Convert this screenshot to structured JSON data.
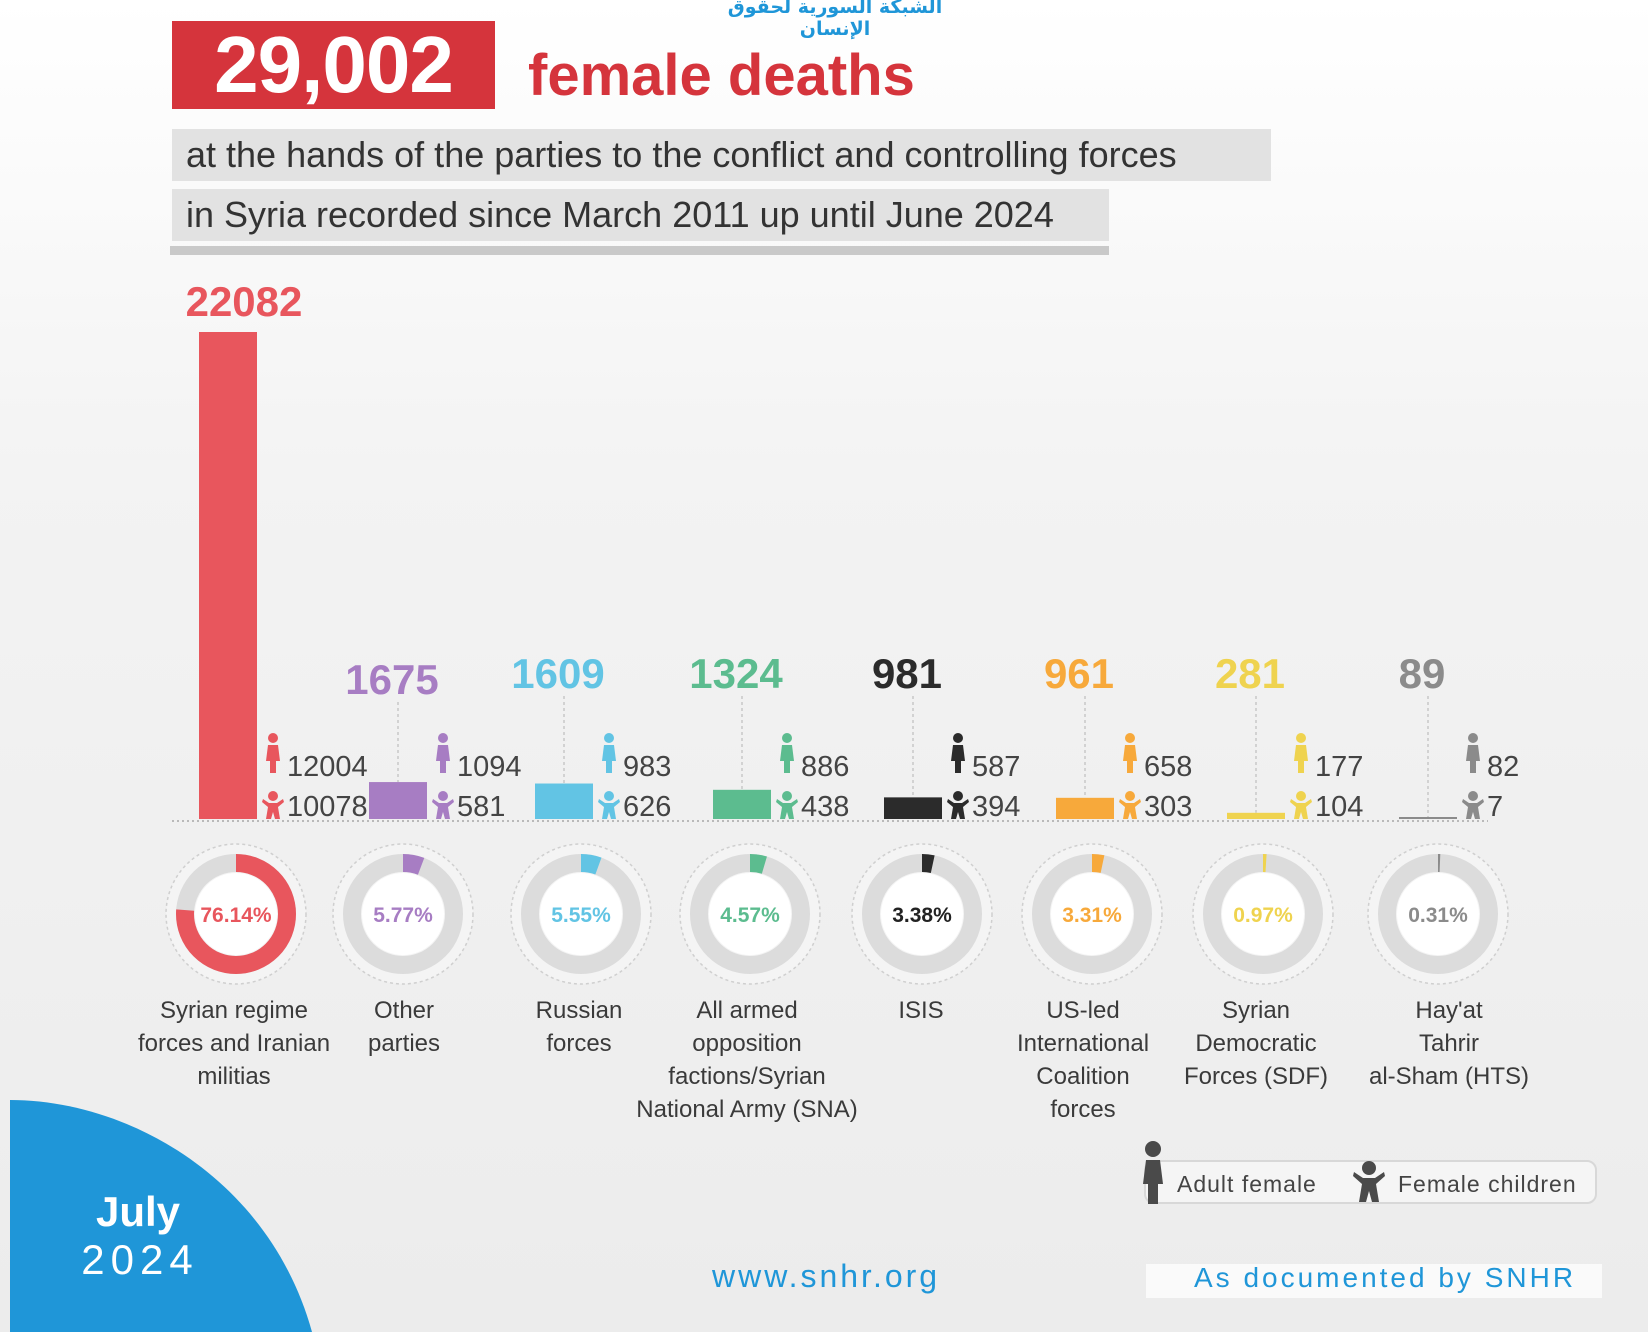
{
  "header": {
    "arabic_org": "الشبكة السورية لحقوق الإنسان",
    "total": "29,002",
    "total_label": "female deaths",
    "subtitle_line1": "at the hands of the parties to the conflict and controlling forces",
    "subtitle_line2": "in Syria recorded since March 2011 up until June 2024"
  },
  "legend": {
    "adult": "Adult female",
    "children": "Female children"
  },
  "footer": {
    "month": "July",
    "year": "2024",
    "website": "www.snhr.org",
    "credit": "As documented by SNHR"
  },
  "icons": {
    "adult": "adult-female-icon",
    "child": "female-child-icon"
  },
  "chart_data": {
    "type": "bar",
    "categories": [
      "Syrian regime forces and Iranian militias",
      "Other parties",
      "Russian forces",
      "All armed opposition factions/Syrian National Army (SNA)",
      "ISIS",
      "US-led International Coalition forces",
      "Syrian Democratic Forces (SDF)",
      "Hay'at Tahrir al-Sham (HTS)"
    ],
    "category_lines": [
      [
        "Syrian regime",
        "forces and Iranian",
        "militias"
      ],
      [
        "Other",
        "parties"
      ],
      [
        "Russian",
        "forces"
      ],
      [
        "All armed",
        "opposition",
        "factions/Syrian",
        "National Army (SNA)"
      ],
      [
        "ISIS"
      ],
      [
        "US-led",
        "International",
        "Coalition",
        "forces"
      ],
      [
        "Syrian",
        "Democratic",
        "Forces (SDF)"
      ],
      [
        "Hay'at",
        "Tahrir",
        "al-Sham (HTS)"
      ]
    ],
    "totals": [
      22082,
      1675,
      1609,
      1324,
      981,
      961,
      281,
      89
    ],
    "series": [
      {
        "name": "Adult female",
        "values": [
          12004,
          1094,
          983,
          886,
          587,
          658,
          177,
          82
        ]
      },
      {
        "name": "Female children",
        "values": [
          10078,
          581,
          626,
          438,
          394,
          303,
          104,
          7
        ]
      }
    ],
    "percentages": [
      "76.14%",
      "5.77%",
      "5.55%",
      "4.57%",
      "3.38%",
      "3.31%",
      "0.97%",
      "0.31%"
    ],
    "percent_values": [
      76.14,
      5.77,
      5.55,
      4.57,
      3.38,
      3.31,
      0.97,
      0.31
    ],
    "colors": [
      "#e8565d",
      "#a77dc3",
      "#62c4e4",
      "#5cbc8f",
      "#2b2b2b",
      "#f7a93b",
      "#efd34f",
      "#8b8b8b"
    ],
    "ylim": [
      0,
      22082
    ],
    "grid": false,
    "legend_position": "bottom-right"
  }
}
